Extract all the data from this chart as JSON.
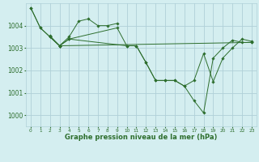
{
  "title": "Graphe pression niveau de la mer (hPa)",
  "background_color": "#d4eef0",
  "grid_color": "#b0d0d8",
  "line_color": "#2d6e2d",
  "xlim": [
    -0.5,
    23.5
  ],
  "ylim": [
    999.5,
    1005.0
  ],
  "yticks": [
    1000,
    1001,
    1002,
    1003,
    1004
  ],
  "xticks": [
    0,
    1,
    2,
    3,
    4,
    5,
    6,
    7,
    8,
    9,
    10,
    11,
    12,
    13,
    14,
    15,
    16,
    17,
    18,
    19,
    20,
    21,
    22,
    23
  ],
  "lines": [
    {
      "x": [
        0,
        1,
        2,
        3,
        4,
        5,
        6,
        7,
        8,
        9
      ],
      "y": [
        1004.8,
        1003.9,
        1003.5,
        1003.1,
        1003.5,
        1004.2,
        1004.3,
        1004.0,
        1004.0,
        1004.1
      ]
    },
    {
      "x": [
        0,
        1,
        2,
        3,
        4,
        9,
        10,
        11,
        12,
        13,
        14,
        15,
        16,
        17,
        18,
        19,
        20,
        21,
        22,
        23
      ],
      "y": [
        1004.8,
        1003.9,
        1003.5,
        1003.1,
        1003.4,
        1003.9,
        1003.1,
        1003.1,
        1002.35,
        1001.55,
        1001.55,
        1001.55,
        1001.3,
        1001.55,
        1002.75,
        1001.5,
        1002.55,
        1003.0,
        1003.4,
        1003.3
      ]
    },
    {
      "x": [
        2,
        3,
        4,
        10,
        11,
        12,
        13,
        14,
        15,
        16,
        17,
        18,
        19,
        20,
        21,
        22,
        23
      ],
      "y": [
        1003.5,
        1003.1,
        1003.4,
        1003.1,
        1003.1,
        1002.35,
        1001.55,
        1001.55,
        1001.55,
        1001.3,
        1000.65,
        1000.1,
        1002.55,
        1003.0,
        1003.35,
        1003.25,
        1003.25
      ]
    },
    {
      "x": [
        2,
        3,
        23
      ],
      "y": [
        1003.55,
        1003.1,
        1003.25
      ]
    }
  ]
}
